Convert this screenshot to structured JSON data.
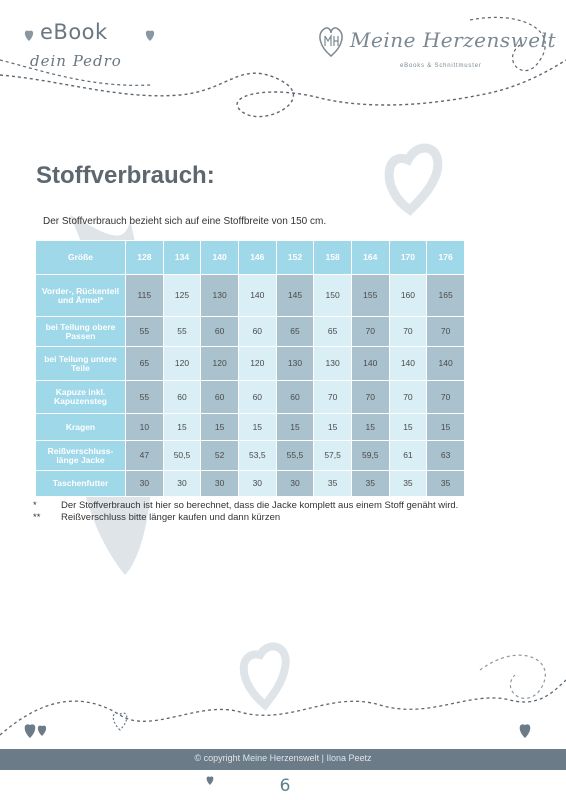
{
  "header": {
    "ebook_title": "eBook",
    "subtitle": "dein Pedro",
    "brand_name": "Meine Herzenswelt",
    "brand_tagline": "eBooks & Schnittmuster"
  },
  "content": {
    "heading": "Stoffverbrauch:",
    "intro": "Der Stoffverbrauch bezieht sich auf eine Stoffbreite von 150 cm."
  },
  "table": {
    "header_label": "Größe",
    "sizes": [
      "128",
      "134",
      "140",
      "146",
      "152",
      "158",
      "164",
      "170",
      "176"
    ],
    "rows": [
      {
        "label": "Vorder-, Rückenteil und Ärmel*",
        "values": [
          "115",
          "125",
          "130",
          "140",
          "145",
          "150",
          "155",
          "160",
          "165"
        ]
      },
      {
        "label": "bei Teilung obere Passen",
        "values": [
          "55",
          "55",
          "60",
          "60",
          "65",
          "65",
          "70",
          "70",
          "70"
        ]
      },
      {
        "label": "bei Teilung untere Teile",
        "values": [
          "65",
          "120",
          "120",
          "120",
          "130",
          "130",
          "140",
          "140",
          "140"
        ]
      },
      {
        "label": "Kapuze inkl. Kapuzensteg",
        "values": [
          "55",
          "60",
          "60",
          "60",
          "60",
          "70",
          "70",
          "70",
          "70"
        ]
      },
      {
        "label": "Kragen",
        "values": [
          "10",
          "15",
          "15",
          "15",
          "15",
          "15",
          "15",
          "15",
          "15"
        ]
      },
      {
        "label": "Reißverschluss-länge Jacke",
        "values": [
          "47",
          "50,5",
          "52",
          "53,5",
          "55,5",
          "57,5",
          "59,5",
          "61",
          "63"
        ]
      },
      {
        "label": "Taschenfutter",
        "values": [
          "30",
          "30",
          "30",
          "30",
          "30",
          "35",
          "35",
          "35",
          "35"
        ]
      }
    ]
  },
  "notes": [
    {
      "marker": "*",
      "text": "Der Stoffverbrauch ist hier so berechnet, dass die Jacke komplett aus einem Stoff genäht wird."
    },
    {
      "marker": "**",
      "text": "Reißverschluss bitte länger kaufen und dann kürzen"
    }
  ],
  "footer": {
    "copyright": "© copyright Meine Herzenswelt | Ilona Peetz",
    "page_number": "6"
  },
  "colors": {
    "header_cyan": "#9fd8e9",
    "cell_gray_blue": "#aac2cd",
    "cell_light": "#d9eef5",
    "footer_band": "#6b7b87",
    "heading_gray": "#5d6770"
  }
}
